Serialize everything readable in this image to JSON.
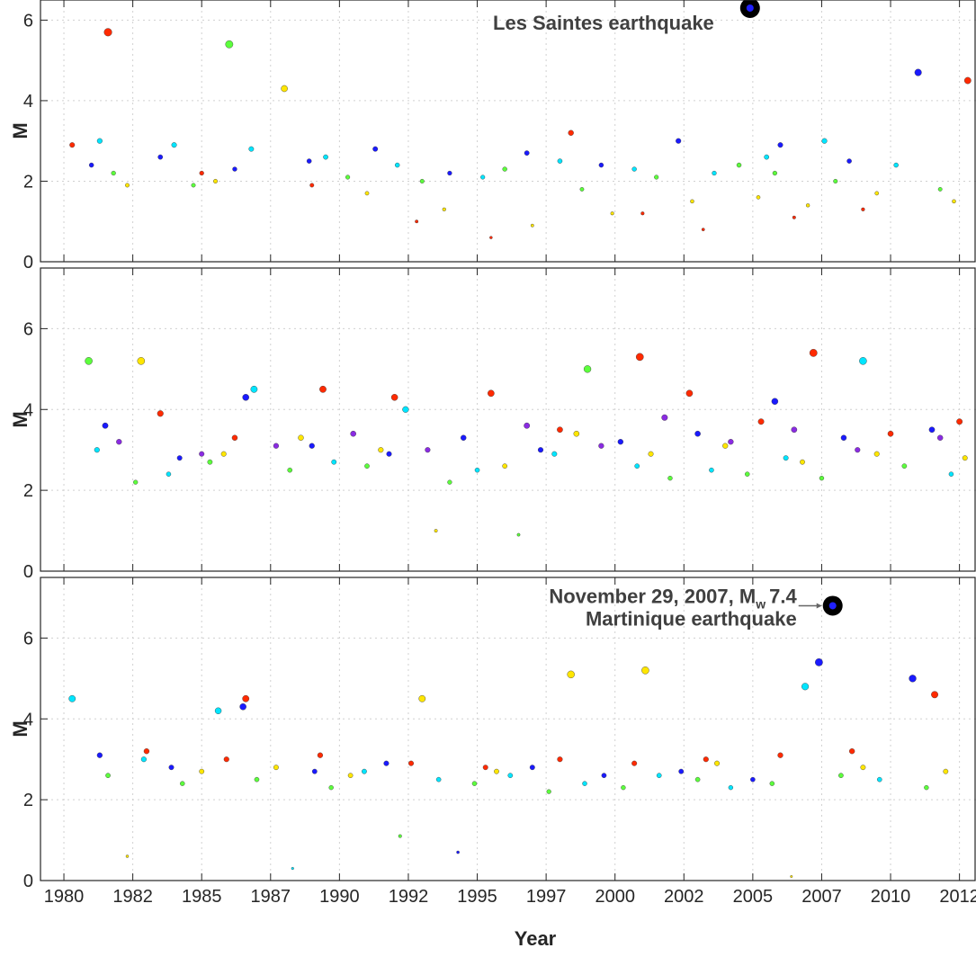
{
  "chart_data": [
    {
      "type": "scatter",
      "ylabel": "M",
      "xlim": [
        1979.15,
        2013.1
      ],
      "ylim": [
        0,
        6.5
      ],
      "xticks": [
        1980,
        1982.5,
        1985,
        1987.5,
        1990,
        1992.5,
        1995,
        1997.5,
        2000,
        2002.5,
        2005,
        2007.5,
        2010,
        2012.5
      ],
      "yticks": [
        0,
        2,
        4,
        6
      ],
      "grid": true,
      "series": [
        {
          "color": "#1a1aff",
          "x": [
            1981.0,
            1983.5,
            1986.2,
            1988.9,
            1991.3,
            1994.0,
            1996.8,
            1999.5,
            2002.3,
            2006.0,
            2008.5,
            2011.0
          ],
          "values": [
            2.4,
            2.6,
            2.3,
            2.5,
            2.8,
            2.2,
            2.7,
            2.4,
            3.0,
            2.9,
            2.5,
            4.7
          ]
        },
        {
          "color": "#00e5ff",
          "x": [
            1981.3,
            1984.0,
            1986.8,
            1989.5,
            1992.1,
            1995.2,
            1998.0,
            2000.7,
            2003.6,
            2005.5,
            2007.6,
            2010.2
          ],
          "values": [
            3.0,
            2.9,
            2.8,
            2.6,
            2.4,
            2.1,
            2.5,
            2.3,
            2.2,
            2.6,
            3.0,
            2.4
          ]
        },
        {
          "color": "#5cff3c",
          "x": [
            1981.8,
            1984.7,
            1986.0,
            1990.3,
            1993.0,
            1996.0,
            1998.8,
            2001.5,
            2004.5,
            2005.8,
            2008.0,
            2011.8
          ],
          "values": [
            2.2,
            1.9,
            5.4,
            2.1,
            2.0,
            2.3,
            1.8,
            2.1,
            2.4,
            2.2,
            2.0,
            1.8
          ]
        },
        {
          "color": "#ffe600",
          "x": [
            1982.3,
            1985.5,
            1988.0,
            1991.0,
            1993.8,
            1997.0,
            1999.9,
            2002.8,
            2005.2,
            2007.0,
            2009.5,
            2012.3
          ],
          "values": [
            1.9,
            2.0,
            4.3,
            1.7,
            1.3,
            0.9,
            1.2,
            1.5,
            1.6,
            1.4,
            1.7,
            1.5
          ]
        },
        {
          "color": "#ff2a00",
          "x": [
            1980.3,
            1981.6,
            1985.0,
            1989.0,
            1992.8,
            1995.5,
            1998.4,
            2001.0,
            2003.2,
            2006.5,
            2009.0,
            2012.8
          ],
          "values": [
            2.9,
            5.7,
            2.2,
            1.9,
            1.0,
            0.6,
            3.2,
            1.2,
            0.8,
            1.1,
            1.3,
            4.5
          ]
        }
      ],
      "annotation": {
        "text": "Les Saintes earthquake",
        "x": 2004.9,
        "y": 6.3
      }
    },
    {
      "type": "scatter",
      "ylabel": "M",
      "xlim": [
        1979.15,
        2013.1
      ],
      "ylim": [
        0,
        7.5
      ],
      "xticks": [
        1980,
        1982.5,
        1985,
        1987.5,
        1990,
        1992.5,
        1995,
        1997.5,
        2000,
        2002.5,
        2005,
        2007.5,
        2010,
        2012.5
      ],
      "yticks": [
        0,
        2,
        4,
        6
      ],
      "grid": true,
      "series": [
        {
          "color": "#1a1aff",
          "x": [
            1981.5,
            1984.2,
            1986.6,
            1989.0,
            1991.8,
            1994.5,
            1997.3,
            2000.2,
            2003.0,
            2005.8,
            2008.3,
            2011.5
          ],
          "values": [
            3.6,
            2.8,
            4.3,
            3.1,
            2.9,
            3.3,
            3.0,
            3.2,
            3.4,
            4.2,
            3.3,
            3.5
          ]
        },
        {
          "color": "#00e5ff",
          "x": [
            1981.2,
            1983.8,
            1986.9,
            1989.8,
            1992.4,
            1995.0,
            1997.8,
            2000.8,
            2003.5,
            2006.2,
            2009.0,
            2012.2
          ],
          "values": [
            3.0,
            2.4,
            4.5,
            2.7,
            4.0,
            2.5,
            2.9,
            2.6,
            2.5,
            2.8,
            5.2,
            2.4
          ]
        },
        {
          "color": "#5cff3c",
          "x": [
            1980.9,
            1982.6,
            1985.3,
            1988.2,
            1991.0,
            1994.0,
            1996.5,
            1999.0,
            2002.0,
            2004.8,
            2007.5,
            2010.5
          ],
          "values": [
            5.2,
            2.2,
            2.7,
            2.5,
            2.6,
            2.2,
            0.9,
            5.0,
            2.3,
            2.4,
            2.3,
            2.6
          ]
        },
        {
          "color": "#ffe600",
          "x": [
            1982.8,
            1985.8,
            1988.6,
            1991.5,
            1993.5,
            1996.0,
            1998.6,
            2001.3,
            2004.0,
            2006.8,
            2009.5,
            2012.7
          ],
          "values": [
            5.2,
            2.9,
            3.3,
            3.0,
            1.0,
            2.6,
            3.4,
            2.9,
            3.1,
            2.7,
            2.9,
            2.8
          ]
        },
        {
          "color": "#ff2a00",
          "x": [
            1983.5,
            1986.2,
            1989.4,
            1992.0,
            1995.5,
            1998.0,
            2000.9,
            2002.7,
            2005.3,
            2007.2,
            2010.0,
            2012.5
          ],
          "values": [
            3.9,
            3.3,
            4.5,
            4.3,
            4.4,
            3.5,
            5.3,
            4.4,
            3.7,
            5.4,
            3.4,
            3.7
          ]
        },
        {
          "color": "#8a2be2",
          "x": [
            1982.0,
            1985.0,
            1987.7,
            1990.5,
            1993.2,
            1996.8,
            1999.5,
            2001.8,
            2004.2,
            2006.5,
            2008.8,
            2011.8
          ],
          "values": [
            3.2,
            2.9,
            3.1,
            3.4,
            3.0,
            3.6,
            3.1,
            3.8,
            3.2,
            3.5,
            3.0,
            3.3
          ]
        }
      ]
    },
    {
      "type": "scatter",
      "ylabel": "M",
      "xlabel": "Year",
      "xlim": [
        1979.15,
        2013.1
      ],
      "ylim": [
        0,
        7.5
      ],
      "xticks": [
        {
          "value": 1980,
          "label": "1980"
        },
        {
          "value": 1982.5,
          "label": "1982"
        },
        {
          "value": 1985,
          "label": "1985"
        },
        {
          "value": 1987.5,
          "label": "1987"
        },
        {
          "value": 1990,
          "label": "1990"
        },
        {
          "value": 1992.5,
          "label": "1992"
        },
        {
          "value": 1995,
          "label": "1995"
        },
        {
          "value": 1997.5,
          "label": "1997"
        },
        {
          "value": 2000,
          "label": "2000"
        },
        {
          "value": 2002.5,
          "label": "2002"
        },
        {
          "value": 2005,
          "label": "2005"
        },
        {
          "value": 2007.5,
          "label": "2007"
        },
        {
          "value": 2010,
          "label": "2010"
        },
        {
          "value": 2012.5,
          "label": "2012"
        }
      ],
      "yticks": [
        0,
        2,
        4,
        6
      ],
      "grid": true,
      "series": [
        {
          "color": "#1a1aff",
          "x": [
            1981.3,
            1983.9,
            1986.5,
            1989.1,
            1991.7,
            1994.3,
            1997.0,
            1999.6,
            2002.4,
            2005.0,
            2007.4,
            2010.8
          ],
          "values": [
            3.1,
            2.8,
            4.3,
            2.7,
            2.9,
            0.7,
            2.8,
            2.6,
            2.7,
            2.5,
            5.4,
            5.0
          ]
        },
        {
          "color": "#00e5ff",
          "x": [
            1980.3,
            1982.9,
            1985.6,
            1988.3,
            1990.9,
            1993.6,
            1996.2,
            1998.9,
            2001.6,
            2004.2,
            2006.9,
            2009.6
          ],
          "values": [
            4.5,
            3.0,
            4.2,
            0.3,
            2.7,
            2.5,
            2.6,
            2.4,
            2.6,
            2.3,
            4.8,
            2.5
          ]
        },
        {
          "color": "#5cff3c",
          "x": [
            1981.6,
            1984.3,
            1987.0,
            1989.7,
            1992.2,
            1994.9,
            1997.6,
            2000.3,
            2003.0,
            2005.7,
            2008.2,
            2011.3
          ],
          "values": [
            2.6,
            2.4,
            2.5,
            2.3,
            1.1,
            2.4,
            2.2,
            2.3,
            2.5,
            2.4,
            2.6,
            2.3
          ]
        },
        {
          "color": "#ffe600",
          "x": [
            1982.3,
            1985.0,
            1987.7,
            1990.4,
            1993.0,
            1995.7,
            1998.4,
            2001.1,
            2003.7,
            2006.4,
            2009.0,
            2012.0
          ],
          "values": [
            0.6,
            2.7,
            2.8,
            2.6,
            4.5,
            2.7,
            5.1,
            5.2,
            2.9,
            0.1,
            2.8,
            2.7
          ]
        },
        {
          "color": "#ff2a00",
          "x": [
            1983.0,
            1985.9,
            1986.6,
            1989.3,
            1992.6,
            1995.3,
            1998.0,
            2000.7,
            2003.3,
            2006.0,
            2008.6,
            2011.6
          ],
          "values": [
            3.2,
            3.0,
            4.5,
            3.1,
            2.9,
            2.8,
            3.0,
            2.9,
            3.0,
            3.1,
            3.2,
            4.6
          ]
        }
      ],
      "annotation": {
        "line1": "November 29, 2007, M",
        "subscript": "w",
        "line1_end": "7.4",
        "line2": "Martinique earthquake",
        "x": 2007.9,
        "y": 6.8
      }
    }
  ]
}
